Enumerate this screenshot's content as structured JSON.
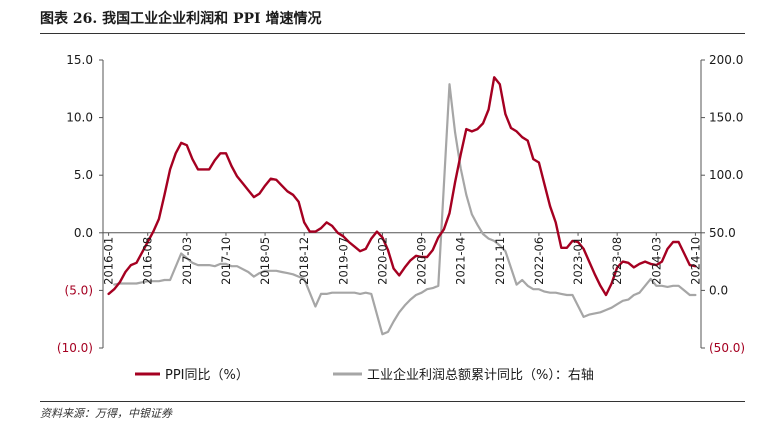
{
  "title": "图表 26. 我国工业企业利润和 PPI 增速情况",
  "source": "资料来源：万得，中银证券",
  "colors": {
    "ppi": "#a50021",
    "profit": "#a6a6a6",
    "negative_label": "#a50021"
  },
  "chart_data": {
    "type": "line",
    "legend_position": "bottom",
    "grid": false,
    "x_range": [
      "2015-12",
      "2024-11"
    ],
    "left_axis": {
      "range": [
        -10,
        15
      ],
      "ticks": [
        15,
        10,
        5,
        0,
        -5,
        -10
      ],
      "tick_labels": [
        "15.0",
        "10.0",
        "5.0",
        "0.0",
        "(5.0)",
        "(10.0)"
      ]
    },
    "right_axis": {
      "range": [
        -50,
        200
      ],
      "ticks": [
        200,
        150,
        100,
        50,
        0,
        -50
      ],
      "tick_labels": [
        "200.0",
        "150.0",
        "100.0",
        "50.0",
        "0.0",
        "(50.0)"
      ]
    },
    "x_tick_labels": [
      "2016-01",
      "2016-08",
      "2017-03",
      "2017-10",
      "2018-05",
      "2018-12",
      "2019-07",
      "2020-02",
      "2020-09",
      "2021-04",
      "2021-11",
      "2022-06",
      "2023-01",
      "2023-08",
      "2024-03",
      "2024-10"
    ],
    "series": [
      {
        "name": "PPI同比（%）",
        "axis": "left",
        "points": [
          [
            "2016-01",
            -5.3
          ],
          [
            "2016-02",
            -4.9
          ],
          [
            "2016-03",
            -4.3
          ],
          [
            "2016-04",
            -3.4
          ],
          [
            "2016-05",
            -2.8
          ],
          [
            "2016-06",
            -2.6
          ],
          [
            "2016-07",
            -1.7
          ],
          [
            "2016-08",
            -0.8
          ],
          [
            "2016-09",
            0.1
          ],
          [
            "2016-10",
            1.2
          ],
          [
            "2016-11",
            3.3
          ],
          [
            "2016-12",
            5.5
          ],
          [
            "2017-01",
            6.9
          ],
          [
            "2017-02",
            7.8
          ],
          [
            "2017-03",
            7.6
          ],
          [
            "2017-04",
            6.4
          ],
          [
            "2017-05",
            5.5
          ],
          [
            "2017-06",
            5.5
          ],
          [
            "2017-07",
            5.5
          ],
          [
            "2017-08",
            6.3
          ],
          [
            "2017-09",
            6.9
          ],
          [
            "2017-10",
            6.9
          ],
          [
            "2017-11",
            5.8
          ],
          [
            "2017-12",
            4.9
          ],
          [
            "2018-01",
            4.3
          ],
          [
            "2018-02",
            3.7
          ],
          [
            "2018-03",
            3.1
          ],
          [
            "2018-04",
            3.4
          ],
          [
            "2018-05",
            4.1
          ],
          [
            "2018-06",
            4.7
          ],
          [
            "2018-07",
            4.6
          ],
          [
            "2018-08",
            4.1
          ],
          [
            "2018-09",
            3.6
          ],
          [
            "2018-10",
            3.3
          ],
          [
            "2018-11",
            2.7
          ],
          [
            "2018-12",
            0.9
          ],
          [
            "2019-01",
            0.1
          ],
          [
            "2019-02",
            0.1
          ],
          [
            "2019-03",
            0.4
          ],
          [
            "2019-04",
            0.9
          ],
          [
            "2019-05",
            0.6
          ],
          [
            "2019-06",
            0.0
          ],
          [
            "2019-07",
            -0.3
          ],
          [
            "2019-08",
            -0.8
          ],
          [
            "2019-09",
            -1.2
          ],
          [
            "2019-10",
            -1.6
          ],
          [
            "2019-11",
            -1.4
          ],
          [
            "2019-12",
            -0.5
          ],
          [
            "2020-01",
            0.1
          ],
          [
            "2020-02",
            -0.4
          ],
          [
            "2020-03",
            -1.5
          ],
          [
            "2020-04",
            -3.1
          ],
          [
            "2020-05",
            -3.7
          ],
          [
            "2020-06",
            -3.0
          ],
          [
            "2020-07",
            -2.4
          ],
          [
            "2020-08",
            -2.0
          ],
          [
            "2020-09",
            -2.1
          ],
          [
            "2020-10",
            -2.1
          ],
          [
            "2020-11",
            -1.5
          ],
          [
            "2020-12",
            -0.4
          ],
          [
            "2021-01",
            0.3
          ],
          [
            "2021-02",
            1.7
          ],
          [
            "2021-03",
            4.4
          ],
          [
            "2021-04",
            6.8
          ],
          [
            "2021-05",
            9.0
          ],
          [
            "2021-06",
            8.8
          ],
          [
            "2021-07",
            9.0
          ],
          [
            "2021-08",
            9.5
          ],
          [
            "2021-09",
            10.7
          ],
          [
            "2021-10",
            13.5
          ],
          [
            "2021-11",
            12.9
          ],
          [
            "2021-12",
            10.3
          ],
          [
            "2022-01",
            9.1
          ],
          [
            "2022-02",
            8.8
          ],
          [
            "2022-03",
            8.3
          ],
          [
            "2022-04",
            8.0
          ],
          [
            "2022-05",
            6.4
          ],
          [
            "2022-06",
            6.1
          ],
          [
            "2022-07",
            4.2
          ],
          [
            "2022-08",
            2.3
          ],
          [
            "2022-09",
            0.9
          ],
          [
            "2022-10",
            -1.3
          ],
          [
            "2022-11",
            -1.3
          ],
          [
            "2022-12",
            -0.7
          ],
          [
            "2023-01",
            -0.8
          ],
          [
            "2023-02",
            -1.4
          ],
          [
            "2023-03",
            -2.5
          ],
          [
            "2023-04",
            -3.6
          ],
          [
            "2023-05",
            -4.6
          ],
          [
            "2023-06",
            -5.4
          ],
          [
            "2023-07",
            -4.4
          ],
          [
            "2023-08",
            -3.0
          ],
          [
            "2023-09",
            -2.5
          ],
          [
            "2023-10",
            -2.6
          ],
          [
            "2023-11",
            -3.0
          ],
          [
            "2023-12",
            -2.7
          ],
          [
            "2024-01",
            -2.5
          ],
          [
            "2024-02",
            -2.7
          ],
          [
            "2024-03",
            -2.8
          ],
          [
            "2024-04",
            -2.5
          ],
          [
            "2024-05",
            -1.4
          ],
          [
            "2024-06",
            -0.8
          ],
          [
            "2024-07",
            -0.8
          ],
          [
            "2024-08",
            -1.8
          ],
          [
            "2024-09",
            -2.8
          ],
          [
            "2024-10",
            -2.9
          ]
        ]
      },
      {
        "name": "工业企业利润总额累计同比（%）：右轴",
        "axis": "right",
        "points": [
          [
            "2016-02",
            5
          ],
          [
            "2016-03",
            6
          ],
          [
            "2016-04",
            6
          ],
          [
            "2016-05",
            6
          ],
          [
            "2016-06",
            6
          ],
          [
            "2016-07",
            7
          ],
          [
            "2016-08",
            8
          ],
          [
            "2016-09",
            8
          ],
          [
            "2016-10",
            8
          ],
          [
            "2016-11",
            9
          ],
          [
            "2016-12",
            9
          ],
          [
            "2017-02",
            32
          ],
          [
            "2017-03",
            28
          ],
          [
            "2017-04",
            24
          ],
          [
            "2017-05",
            22
          ],
          [
            "2017-06",
            22
          ],
          [
            "2017-07",
            22
          ],
          [
            "2017-08",
            21
          ],
          [
            "2017-09",
            23
          ],
          [
            "2017-10",
            23
          ],
          [
            "2017-11",
            21
          ],
          [
            "2017-12",
            21
          ],
          [
            "2018-02",
            16
          ],
          [
            "2018-03",
            12
          ],
          [
            "2018-04",
            15
          ],
          [
            "2018-05",
            17
          ],
          [
            "2018-06",
            17
          ],
          [
            "2018-07",
            17
          ],
          [
            "2018-08",
            16
          ],
          [
            "2018-09",
            15
          ],
          [
            "2018-10",
            14
          ],
          [
            "2018-11",
            12
          ],
          [
            "2018-12",
            10
          ],
          [
            "2019-02",
            -14
          ],
          [
            "2019-03",
            -3
          ],
          [
            "2019-04",
            -3
          ],
          [
            "2019-05",
            -2
          ],
          [
            "2019-06",
            -2
          ],
          [
            "2019-07",
            -2
          ],
          [
            "2019-08",
            -2
          ],
          [
            "2019-09",
            -2
          ],
          [
            "2019-10",
            -3
          ],
          [
            "2019-11",
            -2
          ],
          [
            "2019-12",
            -3
          ],
          [
            "2020-02",
            -38
          ],
          [
            "2020-03",
            -36
          ],
          [
            "2020-04",
            -27
          ],
          [
            "2020-05",
            -19
          ],
          [
            "2020-06",
            -13
          ],
          [
            "2020-07",
            -8
          ],
          [
            "2020-08",
            -4
          ],
          [
            "2020-09",
            -2
          ],
          [
            "2020-10",
            1
          ],
          [
            "2020-11",
            2
          ],
          [
            "2020-12",
            4
          ],
          [
            "2021-02",
            179
          ],
          [
            "2021-03",
            137
          ],
          [
            "2021-04",
            106
          ],
          [
            "2021-05",
            83
          ],
          [
            "2021-06",
            66
          ],
          [
            "2021-07",
            57
          ],
          [
            "2021-08",
            49
          ],
          [
            "2021-09",
            45
          ],
          [
            "2021-10",
            43
          ],
          [
            "2021-11",
            39
          ],
          [
            "2021-12",
            34
          ],
          [
            "2022-02",
            5
          ],
          [
            "2022-03",
            9
          ],
          [
            "2022-04",
            4
          ],
          [
            "2022-05",
            1
          ],
          [
            "2022-06",
            1
          ],
          [
            "2022-07",
            -1
          ],
          [
            "2022-08",
            -2
          ],
          [
            "2022-09",
            -2
          ],
          [
            "2022-10",
            -3
          ],
          [
            "2022-11",
            -4
          ],
          [
            "2022-12",
            -4
          ],
          [
            "2023-02",
            -23
          ],
          [
            "2023-03",
            -21
          ],
          [
            "2023-04",
            -20
          ],
          [
            "2023-05",
            -19
          ],
          [
            "2023-06",
            -17
          ],
          [
            "2023-07",
            -15
          ],
          [
            "2023-08",
            -12
          ],
          [
            "2023-09",
            -9
          ],
          [
            "2023-10",
            -8
          ],
          [
            "2023-11",
            -4
          ],
          [
            "2023-12",
            -2
          ],
          [
            "2024-02",
            10
          ],
          [
            "2024-03",
            4
          ],
          [
            "2024-04",
            4
          ],
          [
            "2024-05",
            3
          ],
          [
            "2024-06",
            4
          ],
          [
            "2024-07",
            4
          ],
          [
            "2024-08",
            0
          ],
          [
            "2024-09",
            -4
          ],
          [
            "2024-10",
            -4
          ]
        ]
      }
    ]
  }
}
